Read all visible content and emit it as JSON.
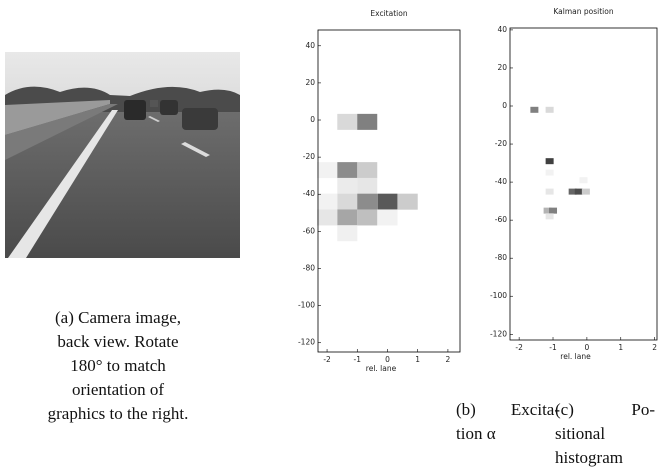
{
  "captions": {
    "a": [
      "(a) Camera image,",
      "back view. Rotate",
      "180° to match",
      "orientation of",
      "graphics to the right."
    ],
    "b": [
      "(b) Excita-",
      "tion α"
    ],
    "c": [
      "(c) Po-",
      "sitional",
      "histogram"
    ]
  },
  "chart_data": [
    {
      "type": "heatmap",
      "title": "Excitation",
      "x_label": "rel. lane",
      "xlim": [
        -2.3,
        2.4
      ],
      "ylim": [
        -125,
        48.5
      ],
      "xticks": [
        -2,
        -1,
        0,
        1,
        2
      ],
      "yticks": [
        40,
        20,
        0,
        -20,
        -40,
        -60,
        -80,
        -100,
        -120
      ],
      "x": [
        -1.33,
        -0.67,
        -2,
        -1.33,
        -0.67,
        -1.33,
        -0.67,
        -2,
        -1.33,
        -0.67,
        0,
        0.67,
        -2,
        -1.33,
        -0.67,
        0,
        -1.33
      ],
      "y": [
        -1,
        -1,
        -27,
        -27,
        -27,
        -35.5,
        -35.5,
        -44,
        -44,
        -44,
        -44,
        -44,
        -52.5,
        -52.5,
        -52.5,
        -52.5,
        -61
      ],
      "values": [
        0.15,
        0.5,
        0.05,
        0.45,
        0.2,
        0.08,
        0.1,
        0.05,
        0.15,
        0.45,
        0.65,
        0.2,
        0.1,
        0.35,
        0.25,
        0.05,
        0.06
      ]
    },
    {
      "type": "heatmap",
      "title": "Kalman position",
      "x_label": "rel. lane",
      "xlim": [
        -2.27,
        2.07
      ],
      "ylim": [
        -123,
        41
      ],
      "xticks": [
        -2,
        -1,
        0,
        1,
        2
      ],
      "yticks": [
        40,
        20,
        0,
        -20,
        -40,
        -60,
        -80,
        -100,
        -120
      ],
      "x": [
        -1.55,
        -1.1,
        -1.1,
        -1.1,
        -0.1,
        -1.1,
        -0.42,
        -0.24,
        -0.03,
        -1.16,
        -1.0,
        -1.1
      ],
      "y": [
        -2,
        -2,
        -29,
        -35,
        -39,
        -45,
        -45,
        -45,
        -45,
        -55,
        -55,
        -58
      ],
      "values": [
        0.5,
        0.15,
        0.75,
        0.05,
        0.05,
        0.1,
        0.6,
        0.7,
        0.2,
        0.3,
        0.5,
        0.1
      ]
    }
  ]
}
